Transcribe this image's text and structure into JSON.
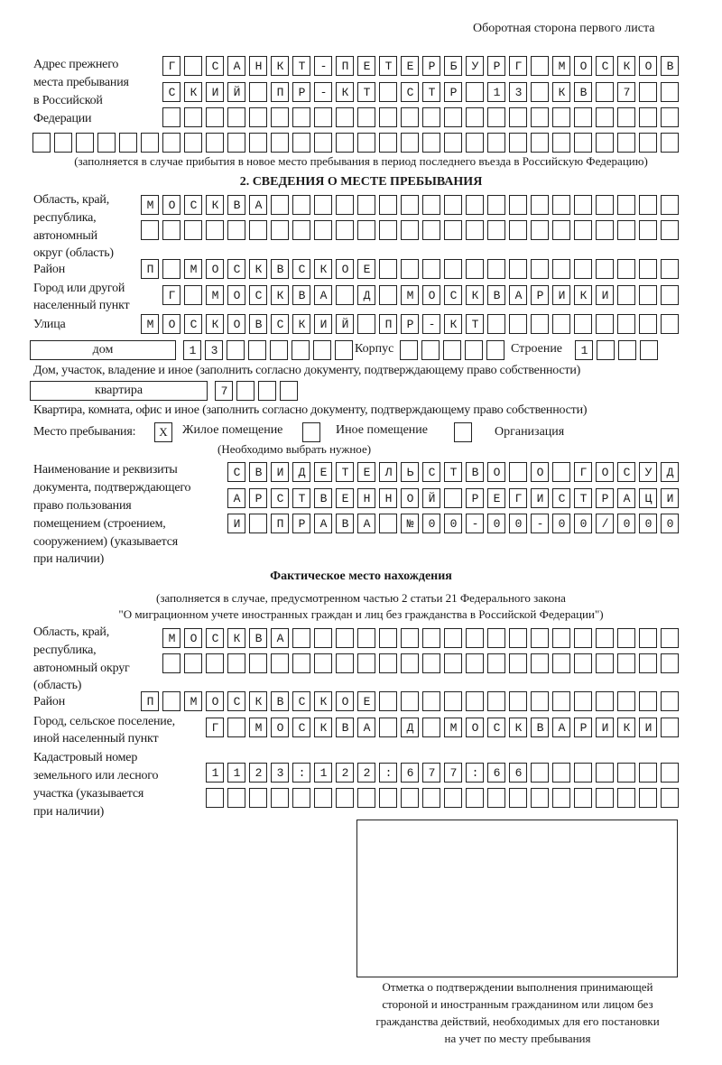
{
  "header": {
    "side_label": "Оборотная сторона первого листа"
  },
  "previous_address": {
    "label": [
      "Адрес прежнего",
      "места пребывания",
      "в Российской",
      "Федерации"
    ],
    "rows": [
      "Г САНКТ-ПЕТЕРБУРГ МОСКОВ",
      "СКИЙ ПР-КТ СТР 13 КВ 7",
      "",
      ""
    ],
    "note": "(заполняется в случае прибытия в новое место пребывания в период последнего въезда в Российскую Федерацию)"
  },
  "section2": {
    "title": "2. СВЕДЕНИЯ О МЕСТЕ ПРЕБЫВАНИЯ",
    "region_label": [
      "Область, край,",
      "республика,",
      "автономный",
      "округ (область)"
    ],
    "region_rows": [
      "МОСКВА",
      ""
    ],
    "district_label": "Район",
    "district": "П МОСКВСКОЕ",
    "city_label": [
      "Город или другой",
      "населенный пункт"
    ],
    "city": "Г МОСКВА Д МОСКВАРИКИ",
    "street_label": "Улица",
    "street": "МОСКОВСКИЙ ПР-КТ",
    "house_type": "дом",
    "house": "13",
    "korpus_label": "Корпус",
    "korpus": "",
    "building_label": "Строение",
    "building": "1",
    "house_note": "Дом, участок, владение и иное (заполнить согласно документу, подтверждающему право собственности)",
    "apt_type": "квартира",
    "apt": "7",
    "apt_note": "Квартира, комната, офис и иное (заполнить согласно документу, подтверждающему право собственности)",
    "stay_label": "Место пребывания:",
    "stay_options": [
      {
        "label": "Жилое помещение",
        "mark": "Х"
      },
      {
        "label": "Иное помещение",
        "mark": ""
      },
      {
        "label": "Организация",
        "mark": ""
      }
    ],
    "stay_note": "(Необходимо выбрать нужное)",
    "doc_label": [
      "Наименование и реквизиты",
      "документа, подтверждающего",
      "право пользования",
      "помещением (строением,",
      "сооружением) (указывается",
      "при наличии)"
    ],
    "doc_rows": [
      "СВИДЕТЕЛЬСТВО О ГОСУД",
      "АРСТВЕННОЙ РЕГИСТРАЦИ",
      "И ПРАВА №00-00-00/000"
    ]
  },
  "actual": {
    "title": "Фактическое место нахождения",
    "note1": "(заполняется в случае, предусмотренном частью 2 статьи 21 Федерального закона",
    "note2": "\"О миграционном учете иностранных граждан и лиц без гражданства в Российской Федерации\")",
    "region_label": [
      "Область, край,",
      "республика,",
      "автономный округ",
      "(область)"
    ],
    "region_rows": [
      "МОСКВА",
      ""
    ],
    "district_label": "Район",
    "district": "П МОСКВСКОЕ",
    "city_label": [
      "Город, сельское поселение,",
      "иной населенный пункт"
    ],
    "city": "Г МОСКВА Д МОСКВАРИКИ",
    "cadastre_label": [
      "Кадастровый номер",
      "земельного или лесного",
      "участка (указывается",
      "при наличии)"
    ],
    "cadastre_rows": [
      "1123:122:677:66",
      ""
    ]
  },
  "stamp": {
    "caption": [
      "Отметка о подтверждении выполнения принимающей",
      "стороной и иностранным гражданином или лицом без",
      "гражданства действий, необходимых для его постановки",
      "на учет по месту пребывания"
    ]
  }
}
